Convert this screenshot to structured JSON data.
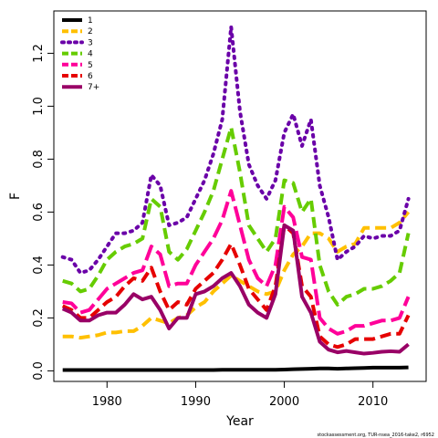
{
  "chart_data": {
    "type": "line",
    "xlabel": "Year",
    "ylabel": "F",
    "xlim": [
      1974,
      2016
    ],
    "ylim": [
      -0.04,
      1.36
    ],
    "x_ticks": [
      1980,
      1990,
      2000,
      2010
    ],
    "y_ticks": [
      0.0,
      0.2,
      0.4,
      0.6,
      0.8,
      1.0,
      1.2
    ],
    "x_tick_labels": [
      "1980",
      "1990",
      "2000",
      "2010"
    ],
    "y_tick_labels": [
      "0.0",
      "0.2",
      "0.4",
      "0.6",
      "0.8",
      "1.0",
      "1.2"
    ],
    "grid": false,
    "legend_position": "top-left",
    "caption": "stockassessment.org, TUR-nsea_2016-take2, r6952",
    "x": [
      1975,
      1976,
      1977,
      1978,
      1979,
      1980,
      1981,
      1982,
      1983,
      1984,
      1985,
      1986,
      1987,
      1988,
      1989,
      1990,
      1991,
      1992,
      1993,
      1994,
      1995,
      1996,
      1997,
      1998,
      1999,
      2000,
      2001,
      2002,
      2003,
      2004,
      2005,
      2006,
      2007,
      2008,
      2009,
      2010,
      2011,
      2012,
      2013,
      2014
    ],
    "series": [
      {
        "name": "1",
        "color": "#000000",
        "dash": "solid",
        "values": [
          0.003,
          0.003,
          0.003,
          0.003,
          0.003,
          0.003,
          0.003,
          0.003,
          0.003,
          0.003,
          0.003,
          0.003,
          0.003,
          0.003,
          0.003,
          0.003,
          0.003,
          0.003,
          0.004,
          0.004,
          0.004,
          0.004,
          0.004,
          0.004,
          0.004,
          0.005,
          0.006,
          0.007,
          0.008,
          0.009,
          0.009,
          0.008,
          0.009,
          0.01,
          0.011,
          0.012,
          0.012,
          0.012,
          0.012,
          0.013
        ]
      },
      {
        "name": "2",
        "color": "#FFC000",
        "dash": "dashed",
        "values": [
          0.13,
          0.13,
          0.125,
          0.13,
          0.135,
          0.145,
          0.145,
          0.15,
          0.15,
          0.17,
          0.2,
          0.19,
          0.18,
          0.2,
          0.21,
          0.24,
          0.26,
          0.3,
          0.33,
          0.36,
          0.34,
          0.32,
          0.3,
          0.29,
          0.3,
          0.38,
          0.44,
          0.47,
          0.52,
          0.52,
          0.5,
          0.45,
          0.47,
          0.48,
          0.54,
          0.54,
          0.54,
          0.54,
          0.56,
          0.6
        ]
      },
      {
        "name": "3",
        "color": "#6A00A8",
        "dash": "dotted",
        "values": [
          0.43,
          0.42,
          0.37,
          0.38,
          0.42,
          0.47,
          0.52,
          0.52,
          0.53,
          0.56,
          0.74,
          0.7,
          0.55,
          0.56,
          0.58,
          0.65,
          0.72,
          0.82,
          0.95,
          1.3,
          0.98,
          0.78,
          0.7,
          0.65,
          0.72,
          0.9,
          0.97,
          0.85,
          0.95,
          0.7,
          0.58,
          0.42,
          0.45,
          0.47,
          0.51,
          0.5,
          0.51,
          0.51,
          0.53,
          0.65
        ]
      },
      {
        "name": "4",
        "color": "#66CC00",
        "dash": "dashed",
        "values": [
          0.34,
          0.33,
          0.3,
          0.31,
          0.36,
          0.42,
          0.45,
          0.47,
          0.48,
          0.5,
          0.65,
          0.62,
          0.45,
          0.42,
          0.46,
          0.53,
          0.6,
          0.68,
          0.8,
          0.92,
          0.75,
          0.55,
          0.5,
          0.45,
          0.5,
          0.72,
          0.71,
          0.6,
          0.65,
          0.4,
          0.3,
          0.25,
          0.28,
          0.29,
          0.31,
          0.31,
          0.32,
          0.34,
          0.37,
          0.52
        ]
      },
      {
        "name": "5",
        "color": "#FF0099",
        "dash": "longdash",
        "values": [
          0.26,
          0.255,
          0.22,
          0.23,
          0.27,
          0.31,
          0.33,
          0.35,
          0.37,
          0.38,
          0.47,
          0.44,
          0.32,
          0.33,
          0.33,
          0.4,
          0.45,
          0.5,
          0.57,
          0.68,
          0.55,
          0.42,
          0.35,
          0.32,
          0.4,
          0.62,
          0.58,
          0.43,
          0.42,
          0.2,
          0.16,
          0.14,
          0.15,
          0.17,
          0.17,
          0.18,
          0.19,
          0.19,
          0.2,
          0.28
        ]
      },
      {
        "name": "6",
        "color": "#E60000",
        "dash": "dashed",
        "values": [
          0.245,
          0.23,
          0.2,
          0.2,
          0.23,
          0.26,
          0.28,
          0.32,
          0.35,
          0.34,
          0.39,
          0.3,
          0.23,
          0.26,
          0.25,
          0.31,
          0.34,
          0.37,
          0.42,
          0.48,
          0.4,
          0.31,
          0.27,
          0.23,
          0.32,
          0.55,
          0.52,
          0.32,
          0.28,
          0.13,
          0.1,
          0.09,
          0.1,
          0.12,
          0.12,
          0.12,
          0.13,
          0.14,
          0.14,
          0.21
        ]
      },
      {
        "name": "7+",
        "color": "#990066",
        "dash": "solid",
        "values": [
          0.235,
          0.22,
          0.19,
          0.19,
          0.21,
          0.22,
          0.22,
          0.25,
          0.29,
          0.27,
          0.28,
          0.23,
          0.16,
          0.2,
          0.2,
          0.29,
          0.3,
          0.32,
          0.35,
          0.37,
          0.32,
          0.25,
          0.22,
          0.2,
          0.29,
          0.55,
          0.53,
          0.28,
          0.22,
          0.11,
          0.08,
          0.07,
          0.075,
          0.07,
          0.065,
          0.068,
          0.072,
          0.074,
          0.072,
          0.1
        ]
      }
    ]
  }
}
